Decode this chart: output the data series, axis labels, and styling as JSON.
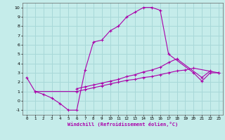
{
  "xlabel": "Windchill (Refroidissement éolien,°C)",
  "bg_color": "#c5ecea",
  "grid_color": "#a8d8d8",
  "line_color": "#aa00aa",
  "xlim": [
    -0.5,
    23.5
  ],
  "ylim": [
    -1.5,
    10.5
  ],
  "xticks": [
    0,
    1,
    2,
    3,
    4,
    5,
    6,
    7,
    8,
    9,
    10,
    11,
    12,
    13,
    14,
    15,
    16,
    17,
    18,
    19,
    20,
    21,
    22,
    23
  ],
  "yticks": [
    -1,
    0,
    1,
    2,
    3,
    4,
    5,
    6,
    7,
    8,
    9,
    10
  ],
  "curve1_x": [
    0,
    1,
    2,
    3,
    4,
    5,
    6,
    7,
    8,
    9,
    10,
    11,
    12,
    13,
    14,
    15,
    16,
    17,
    20,
    21,
    22,
    23
  ],
  "curve1_y": [
    2.5,
    1.0,
    0.7,
    0.3,
    -0.3,
    -1.0,
    -1.0,
    3.3,
    6.3,
    6.5,
    7.5,
    8.0,
    9.0,
    9.5,
    10.0,
    10.0,
    9.7,
    5.0,
    3.0,
    2.1,
    3.0,
    3.0
  ],
  "curve2_x": [
    1,
    6,
    7,
    8,
    9,
    10,
    11,
    12,
    13,
    14,
    15,
    16,
    17,
    18,
    19,
    20,
    23
  ],
  "curve2_y": [
    1.0,
    1.0,
    1.2,
    1.4,
    1.6,
    1.8,
    2.0,
    2.2,
    2.3,
    2.5,
    2.6,
    2.8,
    3.0,
    3.2,
    3.3,
    3.5,
    3.0
  ],
  "curve3_x": [
    6,
    7,
    8,
    9,
    10,
    11,
    12,
    13,
    14,
    15,
    16,
    17,
    18,
    21,
    22
  ],
  "curve3_y": [
    1.3,
    1.5,
    1.7,
    1.9,
    2.1,
    2.3,
    2.6,
    2.8,
    3.1,
    3.3,
    3.6,
    4.1,
    4.5,
    2.5,
    3.2
  ]
}
